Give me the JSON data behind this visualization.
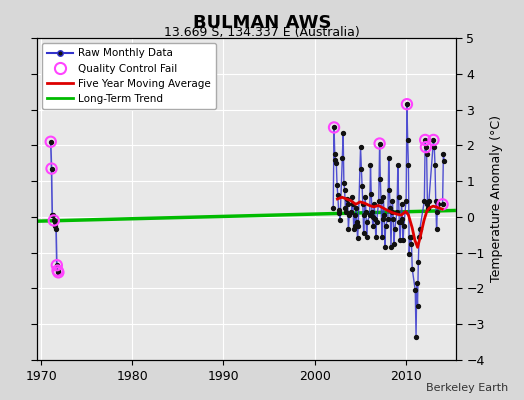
{
  "title": "BULMAN AWS",
  "subtitle": "13.669 S, 134.337 E (Australia)",
  "ylabel": "Temperature Anomaly (°C)",
  "credit": "Berkeley Earth",
  "xlim": [
    1969.5,
    2015.5
  ],
  "ylim": [
    -4,
    5
  ],
  "yticks": [
    -4,
    -3,
    -2,
    -1,
    0,
    1,
    2,
    3,
    4,
    5
  ],
  "xticks": [
    1970,
    1980,
    1990,
    2000,
    2010
  ],
  "bg_color": "#d8d8d8",
  "plot_bg": "#e8e8e8",
  "grid_color": "#ffffff",
  "early_data": [
    [
      1971.04,
      2.1
    ],
    [
      1971.13,
      1.35
    ],
    [
      1971.21,
      0.05
    ],
    [
      1971.29,
      0.05
    ],
    [
      1971.38,
      -0.1
    ],
    [
      1971.46,
      -0.15
    ],
    [
      1971.54,
      -0.25
    ],
    [
      1971.63,
      -0.35
    ],
    [
      1971.71,
      -1.35
    ],
    [
      1971.79,
      -1.5
    ],
    [
      1971.88,
      -1.55
    ]
  ],
  "late_data": [
    [
      2002.04,
      0.25
    ],
    [
      2002.13,
      2.5
    ],
    [
      2002.21,
      1.75
    ],
    [
      2002.29,
      1.6
    ],
    [
      2002.38,
      1.5
    ],
    [
      2002.46,
      0.9
    ],
    [
      2002.54,
      0.6
    ],
    [
      2002.63,
      0.2
    ],
    [
      2002.71,
      0.1
    ],
    [
      2002.79,
      -0.1
    ],
    [
      2003.04,
      1.65
    ],
    [
      2003.13,
      2.35
    ],
    [
      2003.21,
      0.95
    ],
    [
      2003.29,
      0.75
    ],
    [
      2003.38,
      0.25
    ],
    [
      2003.46,
      0.15
    ],
    [
      2003.54,
      0.5
    ],
    [
      2003.63,
      0.35
    ],
    [
      2003.71,
      -0.35
    ],
    [
      2003.79,
      0.05
    ],
    [
      2004.04,
      0.15
    ],
    [
      2004.13,
      0.55
    ],
    [
      2004.21,
      0.35
    ],
    [
      2004.29,
      -0.35
    ],
    [
      2004.38,
      0.05
    ],
    [
      2004.46,
      -0.25
    ],
    [
      2004.54,
      0.25
    ],
    [
      2004.63,
      -0.15
    ],
    [
      2004.71,
      -0.6
    ],
    [
      2004.79,
      -0.25
    ],
    [
      2005.04,
      1.95
    ],
    [
      2005.13,
      1.35
    ],
    [
      2005.21,
      0.85
    ],
    [
      2005.29,
      0.35
    ],
    [
      2005.38,
      -0.45
    ],
    [
      2005.46,
      0.05
    ],
    [
      2005.54,
      0.55
    ],
    [
      2005.63,
      0.15
    ],
    [
      2005.71,
      -0.55
    ],
    [
      2005.79,
      -0.15
    ],
    [
      2006.04,
      0.05
    ],
    [
      2006.13,
      1.45
    ],
    [
      2006.21,
      0.65
    ],
    [
      2006.29,
      0.15
    ],
    [
      2006.38,
      -0.25
    ],
    [
      2006.46,
      0.0
    ],
    [
      2006.54,
      0.35
    ],
    [
      2006.63,
      -0.05
    ],
    [
      2006.71,
      -0.55
    ],
    [
      2006.79,
      -0.15
    ],
    [
      2007.04,
      0.45
    ],
    [
      2007.13,
      2.05
    ],
    [
      2007.21,
      1.05
    ],
    [
      2007.29,
      0.45
    ],
    [
      2007.38,
      -0.55
    ],
    [
      2007.46,
      -0.05
    ],
    [
      2007.54,
      0.55
    ],
    [
      2007.63,
      0.05
    ],
    [
      2007.71,
      -0.85
    ],
    [
      2007.79,
      -0.25
    ],
    [
      2008.04,
      -0.05
    ],
    [
      2008.13,
      1.65
    ],
    [
      2008.21,
      0.75
    ],
    [
      2008.29,
      0.25
    ],
    [
      2008.38,
      -0.85
    ],
    [
      2008.46,
      0.15
    ],
    [
      2008.54,
      0.45
    ],
    [
      2008.63,
      -0.05
    ],
    [
      2008.71,
      -0.75
    ],
    [
      2008.79,
      -0.35
    ],
    [
      2009.04,
      0.15
    ],
    [
      2009.13,
      1.45
    ],
    [
      2009.21,
      0.55
    ],
    [
      2009.29,
      -0.15
    ],
    [
      2009.38,
      -0.65
    ],
    [
      2009.46,
      -0.15
    ],
    [
      2009.54,
      0.35
    ],
    [
      2009.63,
      -0.05
    ],
    [
      2009.71,
      -0.65
    ],
    [
      2009.79,
      -0.25
    ],
    [
      2010.04,
      0.45
    ],
    [
      2010.13,
      3.15
    ],
    [
      2010.21,
      2.15
    ],
    [
      2010.29,
      1.45
    ],
    [
      2010.38,
      -1.05
    ],
    [
      2010.46,
      -0.55
    ],
    [
      2010.54,
      -0.55
    ],
    [
      2010.63,
      -0.75
    ],
    [
      2010.71,
      -1.45
    ],
    [
      2011.04,
      -2.05
    ],
    [
      2011.13,
      -3.35
    ],
    [
      2011.21,
      -1.85
    ],
    [
      2011.29,
      -2.5
    ],
    [
      2011.38,
      -1.25
    ],
    [
      2011.46,
      -0.55
    ],
    [
      2011.54,
      -0.35
    ],
    [
      2012.04,
      0.45
    ],
    [
      2012.13,
      2.15
    ],
    [
      2012.21,
      1.95
    ],
    [
      2012.29,
      1.75
    ],
    [
      2012.38,
      0.35
    ],
    [
      2012.46,
      0.25
    ],
    [
      2012.54,
      0.45
    ],
    [
      2013.04,
      2.15
    ],
    [
      2013.13,
      1.95
    ],
    [
      2013.21,
      1.45
    ],
    [
      2013.29,
      0.45
    ],
    [
      2013.38,
      -0.35
    ],
    [
      2013.46,
      0.15
    ],
    [
      2013.54,
      0.35
    ],
    [
      2014.04,
      0.35
    ],
    [
      2014.13,
      1.75
    ],
    [
      2014.21,
      1.55
    ]
  ],
  "qc_fail": [
    [
      1971.04,
      2.1
    ],
    [
      1971.13,
      1.35
    ],
    [
      1971.38,
      -0.1
    ],
    [
      1971.71,
      -1.35
    ],
    [
      1971.79,
      -1.5
    ],
    [
      1971.88,
      -1.55
    ],
    [
      2002.13,
      2.5
    ],
    [
      2007.13,
      2.05
    ],
    [
      2010.13,
      3.15
    ],
    [
      2012.13,
      2.15
    ],
    [
      2012.21,
      1.95
    ],
    [
      2013.04,
      2.15
    ],
    [
      2014.04,
      0.35
    ]
  ],
  "moving_avg": [
    [
      2002.5,
      0.5
    ],
    [
      2003.0,
      0.55
    ],
    [
      2003.5,
      0.5
    ],
    [
      2004.0,
      0.45
    ],
    [
      2004.5,
      0.35
    ],
    [
      2005.0,
      0.42
    ],
    [
      2005.5,
      0.38
    ],
    [
      2006.0,
      0.32
    ],
    [
      2006.5,
      0.28
    ],
    [
      2007.0,
      0.32
    ],
    [
      2007.5,
      0.25
    ],
    [
      2008.0,
      0.18
    ],
    [
      2008.5,
      0.12
    ],
    [
      2009.0,
      0.08
    ],
    [
      2009.5,
      0.05
    ],
    [
      2010.0,
      0.15
    ],
    [
      2010.3,
      0.05
    ],
    [
      2010.7,
      -0.3
    ],
    [
      2011.0,
      -0.65
    ],
    [
      2011.3,
      -0.85
    ],
    [
      2011.6,
      -0.55
    ],
    [
      2012.0,
      -0.1
    ],
    [
      2012.3,
      0.15
    ],
    [
      2012.6,
      0.25
    ],
    [
      2013.0,
      0.3
    ],
    [
      2013.3,
      0.28
    ],
    [
      2013.6,
      0.25
    ],
    [
      2014.0,
      0.22
    ]
  ],
  "trend_x": [
    1969.5,
    2015.5
  ],
  "trend_y": [
    -0.12,
    0.18
  ],
  "raw_color": "#3333cc",
  "raw_marker_color": "#111111",
  "qc_color": "#ff44ff",
  "moving_avg_color": "#dd0000",
  "trend_color": "#00bb00"
}
